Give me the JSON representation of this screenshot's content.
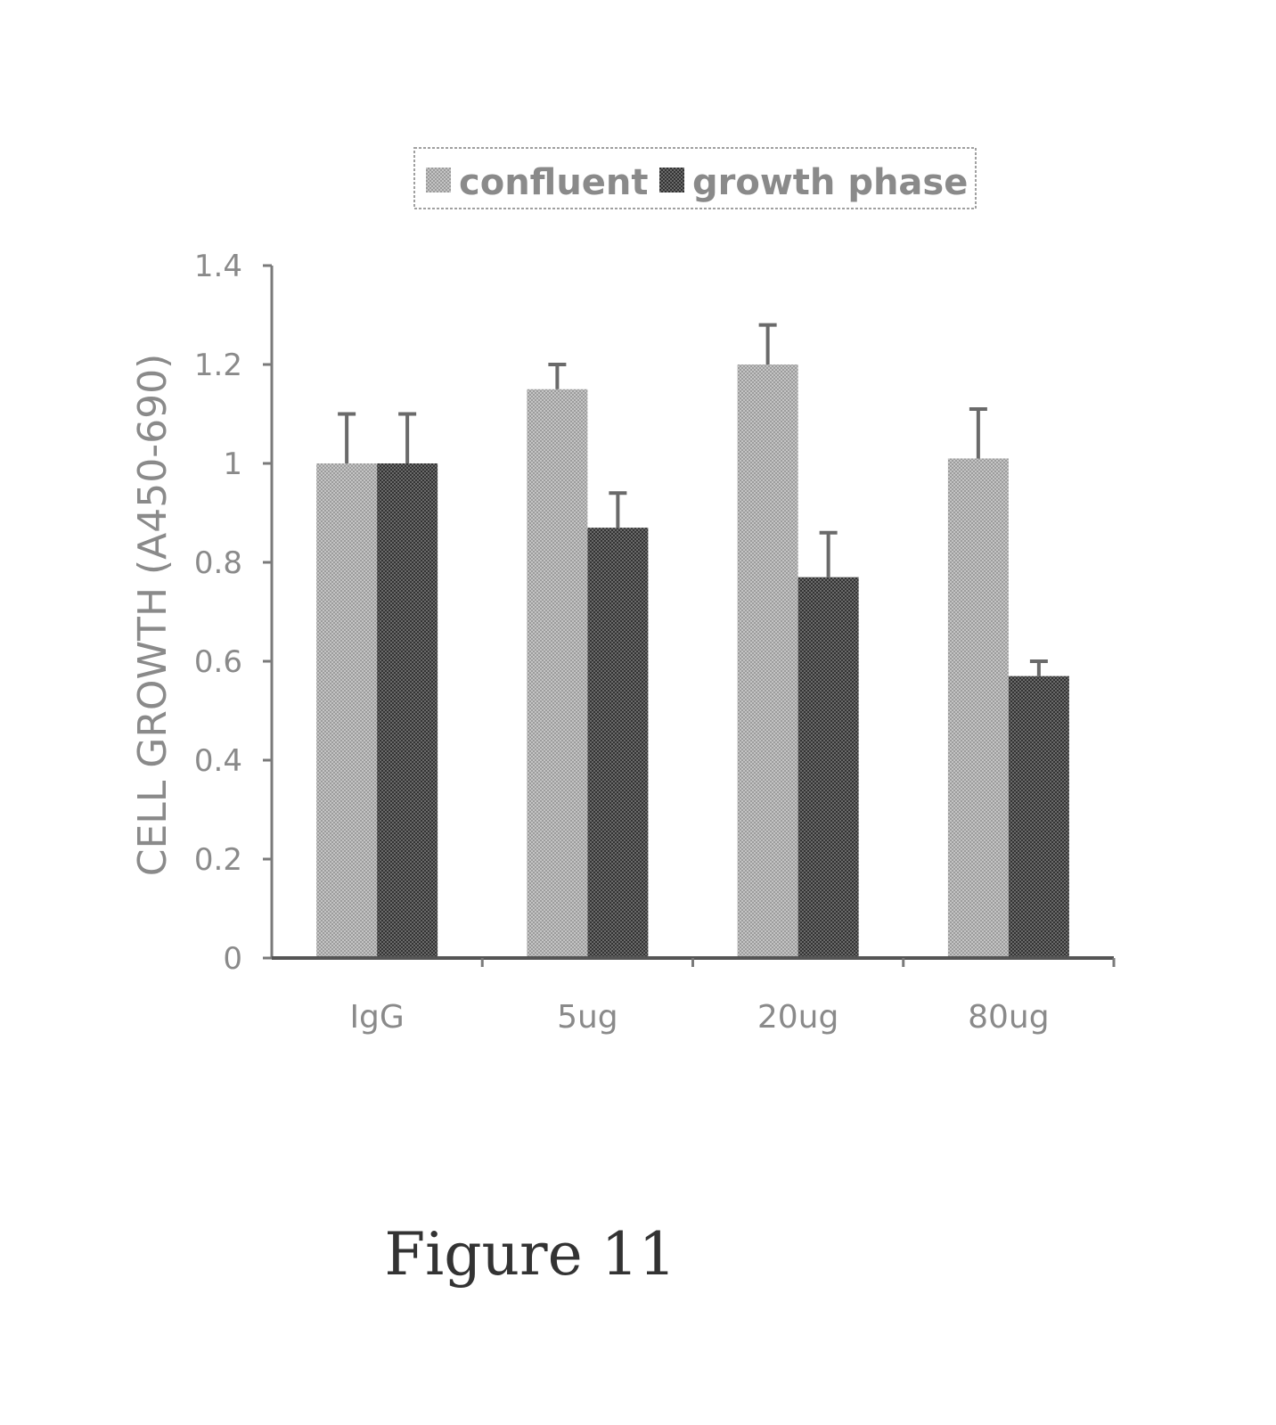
{
  "chart_data": {
    "type": "bar",
    "categories": [
      "IgG",
      "5ug",
      "20ug",
      "80ug"
    ],
    "series": [
      {
        "name": "confluent",
        "values": [
          1.0,
          1.15,
          1.2,
          1.01
        ],
        "errors": [
          0.1,
          0.05,
          0.08,
          0.1
        ]
      },
      {
        "name": "growth phase",
        "values": [
          1.0,
          0.87,
          0.77,
          0.57
        ],
        "errors": [
          0.1,
          0.07,
          0.09,
          0.03
        ]
      }
    ],
    "title": "",
    "xlabel": "",
    "ylabel": "CELL GROWTH (A450-690)",
    "ylim": [
      0,
      1.4
    ],
    "yticks": [
      0,
      0.2,
      0.4,
      0.6,
      0.8,
      1,
      1.2,
      1.4
    ],
    "ytick_labels": [
      "0",
      "0.2",
      "0.4",
      "0.6",
      "0.8",
      "1",
      "1.2",
      "1.4"
    ],
    "legend_position": "top",
    "grid": false,
    "colors": {
      "confluent": "#b4b4b4",
      "growth phase": "#4e4e4e"
    }
  },
  "caption": "Figure 11"
}
